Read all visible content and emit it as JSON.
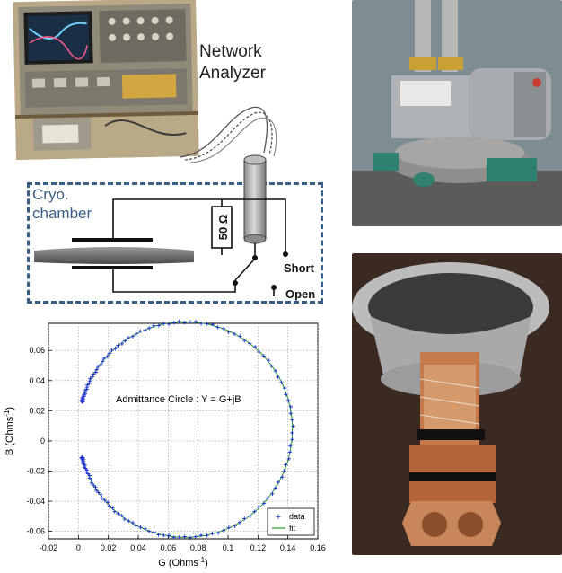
{
  "labels": {
    "network_analyzer_line1": "Network",
    "network_analyzer_line2": "Analyzer",
    "cryo_line1": "Cryo.",
    "cryo_line2": "chamber",
    "resistor": "50 Ω",
    "short": "Short",
    "open": "Open"
  },
  "colors": {
    "dashed_box": "#3a5f86",
    "data_marker": "#1f2fd0",
    "fit_line": "#2e9a2e"
  },
  "chart_data": {
    "type": "scatter",
    "annotation": "Admittance Circle : Y = G+jB",
    "xlabel": "G (Ohms",
    "xlabel_sup": "-1",
    "xlabel_close": ")",
    "ylabel": "B (Ohms",
    "ylabel_sup": "-1",
    "ylabel_close": ")",
    "xlim": [
      -0.02,
      0.16
    ],
    "ylim": [
      -0.065,
      0.078
    ],
    "xticks": [
      -0.02,
      0,
      0.02,
      0.04,
      0.06,
      0.08,
      0.1,
      0.12,
      0.14,
      0.16
    ],
    "xtick_labels": [
      "-0.02",
      "0",
      "0.02",
      "0.04",
      "0.06",
      "0.08",
      "0.1",
      "0.12",
      "0.14",
      "0.16"
    ],
    "yticks": [
      -0.06,
      -0.04,
      -0.02,
      0,
      0.02,
      0.04,
      0.06
    ],
    "ytick_labels": [
      "-0.06",
      "-0.04",
      "-0.02",
      "0",
      "0.02",
      "0.04",
      "0.06"
    ],
    "grid": true,
    "legend_position": "bottom-right",
    "series": [
      {
        "name": "data",
        "marker": "+",
        "circle": {
          "center_g": 0.0715,
          "center_b": 0.0075,
          "radius": 0.0715
        },
        "angle_range_deg": [
          15,
          345
        ],
        "points": 150
      },
      {
        "name": "fit",
        "style": "line",
        "circle": {
          "center_g": 0.0715,
          "center_b": 0.0075,
          "radius": 0.0715
        },
        "angle_range_deg": [
          15,
          345
        ]
      }
    ]
  }
}
